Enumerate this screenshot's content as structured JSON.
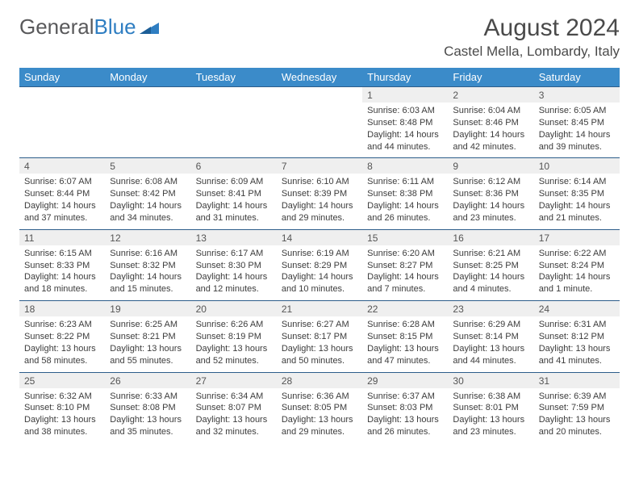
{
  "logo": {
    "text1": "General",
    "text2": "Blue"
  },
  "title": {
    "month": "August 2024",
    "location": "Castel Mella, Lombardy, Italy"
  },
  "colors": {
    "header_bg": "#3b8bc9",
    "header_text": "#ffffff",
    "date_bg": "#efefef",
    "border": "#2d5d8a",
    "logo_gray": "#59595b",
    "logo_blue": "#2f7ec2"
  },
  "day_headers": [
    "Sunday",
    "Monday",
    "Tuesday",
    "Wednesday",
    "Thursday",
    "Friday",
    "Saturday"
  ],
  "weeks": [
    [
      null,
      null,
      null,
      null,
      {
        "n": "1",
        "sr": "6:03 AM",
        "ss": "8:48 PM",
        "dl": "14 hours and 44 minutes."
      },
      {
        "n": "2",
        "sr": "6:04 AM",
        "ss": "8:46 PM",
        "dl": "14 hours and 42 minutes."
      },
      {
        "n": "3",
        "sr": "6:05 AM",
        "ss": "8:45 PM",
        "dl": "14 hours and 39 minutes."
      }
    ],
    [
      {
        "n": "4",
        "sr": "6:07 AM",
        "ss": "8:44 PM",
        "dl": "14 hours and 37 minutes."
      },
      {
        "n": "5",
        "sr": "6:08 AM",
        "ss": "8:42 PM",
        "dl": "14 hours and 34 minutes."
      },
      {
        "n": "6",
        "sr": "6:09 AM",
        "ss": "8:41 PM",
        "dl": "14 hours and 31 minutes."
      },
      {
        "n": "7",
        "sr": "6:10 AM",
        "ss": "8:39 PM",
        "dl": "14 hours and 29 minutes."
      },
      {
        "n": "8",
        "sr": "6:11 AM",
        "ss": "8:38 PM",
        "dl": "14 hours and 26 minutes."
      },
      {
        "n": "9",
        "sr": "6:12 AM",
        "ss": "8:36 PM",
        "dl": "14 hours and 23 minutes."
      },
      {
        "n": "10",
        "sr": "6:14 AM",
        "ss": "8:35 PM",
        "dl": "14 hours and 21 minutes."
      }
    ],
    [
      {
        "n": "11",
        "sr": "6:15 AM",
        "ss": "8:33 PM",
        "dl": "14 hours and 18 minutes."
      },
      {
        "n": "12",
        "sr": "6:16 AM",
        "ss": "8:32 PM",
        "dl": "14 hours and 15 minutes."
      },
      {
        "n": "13",
        "sr": "6:17 AM",
        "ss": "8:30 PM",
        "dl": "14 hours and 12 minutes."
      },
      {
        "n": "14",
        "sr": "6:19 AM",
        "ss": "8:29 PM",
        "dl": "14 hours and 10 minutes."
      },
      {
        "n": "15",
        "sr": "6:20 AM",
        "ss": "8:27 PM",
        "dl": "14 hours and 7 minutes."
      },
      {
        "n": "16",
        "sr": "6:21 AM",
        "ss": "8:25 PM",
        "dl": "14 hours and 4 minutes."
      },
      {
        "n": "17",
        "sr": "6:22 AM",
        "ss": "8:24 PM",
        "dl": "14 hours and 1 minute."
      }
    ],
    [
      {
        "n": "18",
        "sr": "6:23 AM",
        "ss": "8:22 PM",
        "dl": "13 hours and 58 minutes."
      },
      {
        "n": "19",
        "sr": "6:25 AM",
        "ss": "8:21 PM",
        "dl": "13 hours and 55 minutes."
      },
      {
        "n": "20",
        "sr": "6:26 AM",
        "ss": "8:19 PM",
        "dl": "13 hours and 52 minutes."
      },
      {
        "n": "21",
        "sr": "6:27 AM",
        "ss": "8:17 PM",
        "dl": "13 hours and 50 minutes."
      },
      {
        "n": "22",
        "sr": "6:28 AM",
        "ss": "8:15 PM",
        "dl": "13 hours and 47 minutes."
      },
      {
        "n": "23",
        "sr": "6:29 AM",
        "ss": "8:14 PM",
        "dl": "13 hours and 44 minutes."
      },
      {
        "n": "24",
        "sr": "6:31 AM",
        "ss": "8:12 PM",
        "dl": "13 hours and 41 minutes."
      }
    ],
    [
      {
        "n": "25",
        "sr": "6:32 AM",
        "ss": "8:10 PM",
        "dl": "13 hours and 38 minutes."
      },
      {
        "n": "26",
        "sr": "6:33 AM",
        "ss": "8:08 PM",
        "dl": "13 hours and 35 minutes."
      },
      {
        "n": "27",
        "sr": "6:34 AM",
        "ss": "8:07 PM",
        "dl": "13 hours and 32 minutes."
      },
      {
        "n": "28",
        "sr": "6:36 AM",
        "ss": "8:05 PM",
        "dl": "13 hours and 29 minutes."
      },
      {
        "n": "29",
        "sr": "6:37 AM",
        "ss": "8:03 PM",
        "dl": "13 hours and 26 minutes."
      },
      {
        "n": "30",
        "sr": "6:38 AM",
        "ss": "8:01 PM",
        "dl": "13 hours and 23 minutes."
      },
      {
        "n": "31",
        "sr": "6:39 AM",
        "ss": "7:59 PM",
        "dl": "13 hours and 20 minutes."
      }
    ]
  ],
  "labels": {
    "sunrise": "Sunrise:",
    "sunset": "Sunset:",
    "daylight": "Daylight:"
  }
}
